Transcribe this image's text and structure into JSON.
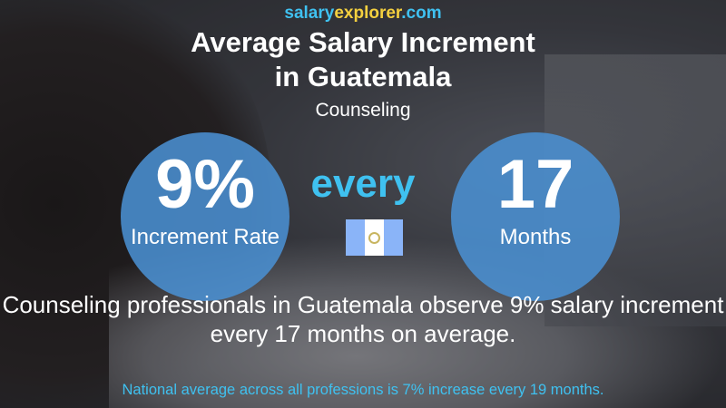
{
  "site": {
    "part1": "salary",
    "part2": "explorer",
    "part3": ".com"
  },
  "title_line1": "Average Salary Increment",
  "title_line2": "in Guatemala",
  "subtitle": "Counseling",
  "rate": {
    "value": "9%",
    "label": "Increment Rate"
  },
  "connector": "every",
  "period": {
    "value": "17",
    "label": "Months"
  },
  "flag": {
    "country": "Guatemala",
    "colors": [
      "#8ab4f8",
      "#ffffff",
      "#8ab4f8"
    ]
  },
  "description": "Counseling professionals in Guatemala observe 9% salary increment every 17 months on average.",
  "national": "National average across all professions is 7% increase every 19 months.",
  "colors": {
    "accent": "#3fc1f0",
    "brand_yellow": "#f4d03f",
    "circle": "#4a90d2"
  }
}
